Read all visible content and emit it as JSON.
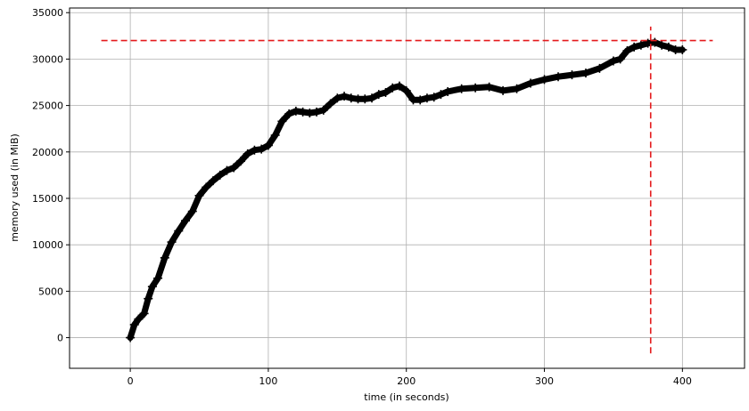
{
  "chart_data": {
    "type": "line",
    "title": "",
    "xlabel": "time (in seconds)",
    "ylabel": "memory used (in MiB)",
    "xlim": [
      -44,
      445
    ],
    "ylim": [
      -3300,
      35500
    ],
    "xticks": [
      0,
      100,
      200,
      300,
      400
    ],
    "yticks": [
      0,
      5000,
      10000,
      15000,
      20000,
      25000,
      30000,
      35000
    ],
    "grid": true,
    "series": [
      {
        "color": "#000000",
        "marker": "plus",
        "x": [
          0,
          3,
          6,
          10,
          13,
          16,
          20,
          25,
          30,
          35,
          40,
          45,
          50,
          55,
          60,
          65,
          70,
          75,
          80,
          85,
          90,
          95,
          100,
          105,
          110,
          115,
          120,
          125,
          130,
          135,
          140,
          145,
          150,
          155,
          160,
          165,
          170,
          175,
          180,
          185,
          190,
          195,
          200,
          205,
          210,
          215,
          220,
          225,
          230,
          240,
          250,
          260,
          270,
          280,
          290,
          300,
          310,
          320,
          330,
          340,
          350,
          355,
          360,
          365,
          370,
          375,
          380,
          385,
          390,
          395,
          400
        ],
        "y": [
          0,
          1400,
          2000,
          2600,
          4200,
          5500,
          6400,
          8600,
          10300,
          11500,
          12600,
          13600,
          15300,
          16200,
          16900,
          17500,
          18000,
          18300,
          19000,
          19800,
          20200,
          20300,
          20700,
          21800,
          23300,
          24100,
          24400,
          24300,
          24200,
          24300,
          24500,
          25200,
          25800,
          26000,
          25800,
          25700,
          25700,
          25800,
          26200,
          26400,
          26900,
          27100,
          26600,
          25600,
          25600,
          25800,
          25900,
          26200,
          26500,
          26800,
          26900,
          27000,
          26600,
          26800,
          27400,
          27800,
          28100,
          28300,
          28500,
          29000,
          29800,
          30000,
          30900,
          31300,
          31500,
          31700,
          31800,
          31500,
          31300,
          31000,
          31000
        ]
      }
    ],
    "annotations": [
      {
        "type": "hline",
        "y": 32000,
        "x_from": -21,
        "x_to": 422,
        "color": "#e41a1c",
        "style": "dashed"
      },
      {
        "type": "vline",
        "x": 377,
        "y_from": -1700,
        "y_to": 33500,
        "color": "#e41a1c",
        "style": "dashed"
      }
    ]
  }
}
